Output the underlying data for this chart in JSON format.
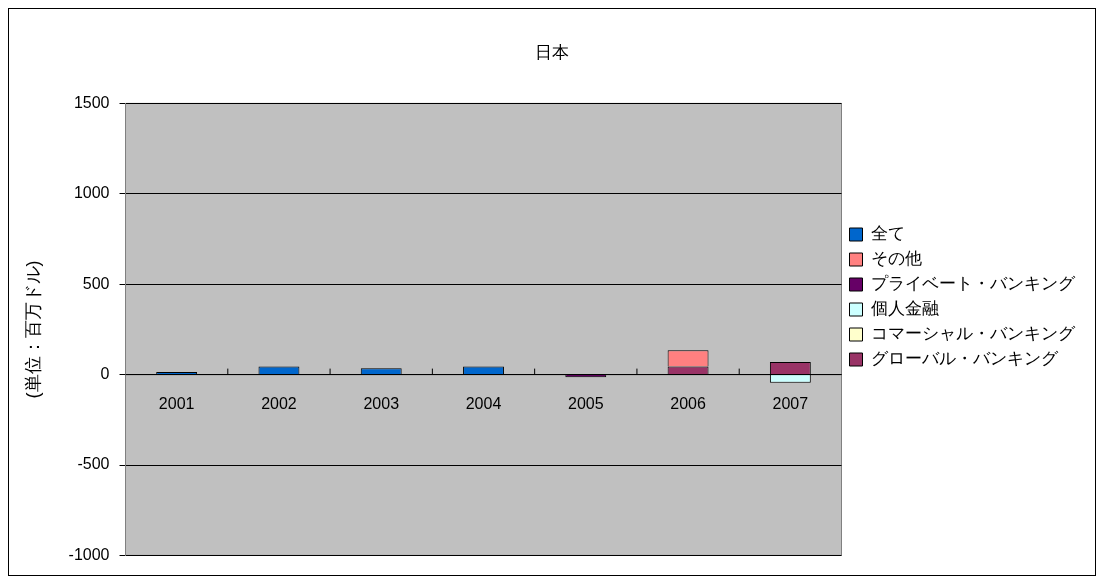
{
  "chart_data": {
    "type": "bar",
    "title": "日本",
    "ylabel": "(単位：百万ドル)",
    "categories": [
      "2001",
      "2002",
      "2003",
      "2004",
      "2005",
      "2006",
      "2007"
    ],
    "stacked": true,
    "ylim": [
      -1000,
      1500
    ],
    "yticks": [
      -1000,
      -500,
      0,
      500,
      1000,
      1500
    ],
    "grid": "y",
    "legend": "right",
    "series": [
      {
        "name": "グローバル・バンキング",
        "color": "#993366",
        "values": [
          null,
          null,
          null,
          null,
          null,
          45,
          70
        ]
      },
      {
        "name": "コマーシャル・バンキング",
        "color": "#ffffcc",
        "values": [
          null,
          null,
          null,
          null,
          null,
          null,
          null
        ]
      },
      {
        "name": "個人金融",
        "color": "#ccffff",
        "values": [
          null,
          null,
          null,
          null,
          null,
          null,
          -45
        ]
      },
      {
        "name": "プライベート・バンキング",
        "color": "#660066",
        "values": [
          null,
          null,
          null,
          null,
          -15,
          null,
          null
        ]
      },
      {
        "name": "その他",
        "color": "#ff8080",
        "values": [
          null,
          null,
          null,
          null,
          null,
          90,
          null
        ]
      },
      {
        "name": "全て",
        "color": "#0066cc",
        "values": [
          15,
          45,
          35,
          45,
          null,
          null,
          null
        ]
      }
    ]
  }
}
